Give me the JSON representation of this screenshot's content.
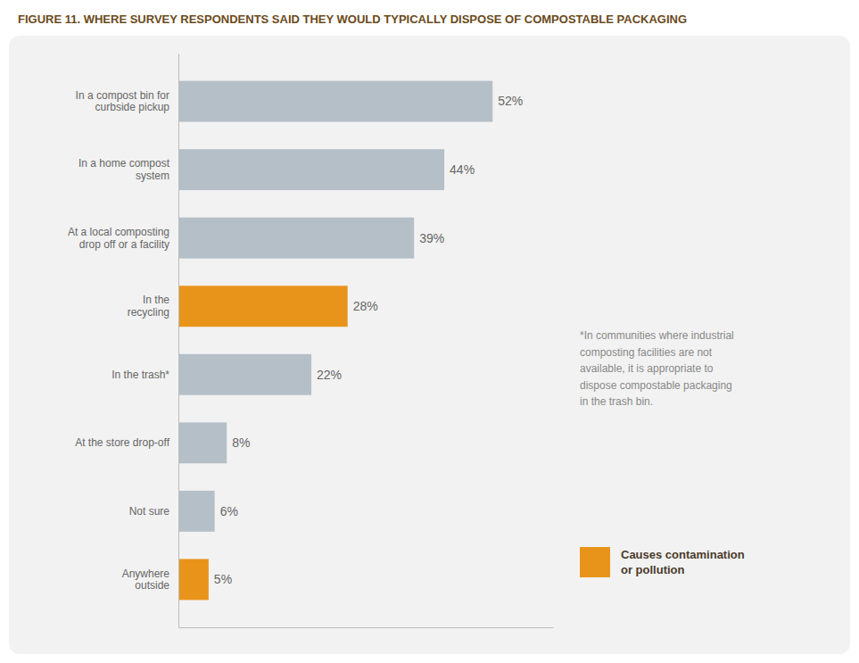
{
  "chart_data": {
    "type": "bar",
    "orientation": "horizontal",
    "title": "FIGURE 11. WHERE SURVEY RESPONDENTS SAID THEY WOULD TYPICALLY DISPOSE OF COMPOSTABLE PACKAGING",
    "categories": [
      "In a compost bin for\ncurbside pickup",
      "In a home compost\nsystem",
      "At a local composting\ndrop off or a facility",
      "In the\nrecycling",
      "In the trash*",
      "At the store drop-off",
      "Not sure",
      "Anywhere\noutside"
    ],
    "values": [
      52,
      44,
      39,
      28,
      22,
      8,
      6,
      5
    ],
    "value_labels": [
      "52%",
      "44%",
      "39%",
      "28%",
      "22%",
      "8%",
      "6%",
      "5%"
    ],
    "colors": [
      "#b5bfc8",
      "#b5bfc8",
      "#b5bfc8",
      "#e8941a",
      "#b5bfc8",
      "#b5bfc8",
      "#b5bfc8",
      "#e8941a"
    ],
    "data_labels": true,
    "xlim": [
      0,
      62
    ],
    "xticks": [],
    "tick_labels": "y",
    "grid": false,
    "legend": "lower right",
    "annotations": [
      {
        "text": "*In communities where industrial\ncomposting facilities are not\navailable, it is appropriate to\ndispose compostable packaging\nin the trash bin."
      },
      {
        "text": "Causes contamination\nor pollution",
        "color": "#e8941a"
      }
    ]
  }
}
